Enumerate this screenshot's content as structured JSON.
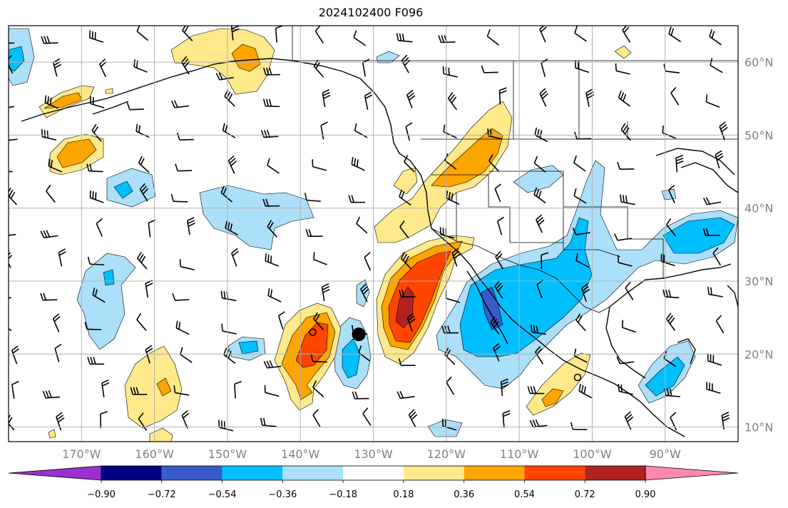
{
  "title": "2024102400 F096",
  "map": {
    "lon_range": [
      -180,
      -80
    ],
    "lat_range": [
      8,
      65
    ],
    "lon_ticks": [
      {
        "value": -170,
        "label": "170°W"
      },
      {
        "value": -160,
        "label": "160°W"
      },
      {
        "value": -150,
        "label": "150°W"
      },
      {
        "value": -140,
        "label": "140°W"
      },
      {
        "value": -130,
        "label": "130°W"
      },
      {
        "value": -120,
        "label": "120°W"
      },
      {
        "value": -110,
        "label": "110°W"
      },
      {
        "value": -100,
        "label": "100°W"
      },
      {
        "value": -90,
        "label": "90°W"
      }
    ],
    "lat_ticks": [
      {
        "value": 60,
        "label": "60°N"
      },
      {
        "value": 50,
        "label": "50°N"
      },
      {
        "value": 40,
        "label": "40°N"
      },
      {
        "value": 30,
        "label": "30°N"
      },
      {
        "value": 20,
        "label": "20°N"
      },
      {
        "value": 10,
        "label": "10°N"
      }
    ],
    "grid": true,
    "markers": [
      {
        "type": "filled-circle",
        "lon": -132,
        "lat": 22.7
      },
      {
        "type": "open-circle",
        "lon": -138.3,
        "lat": 23.0
      },
      {
        "type": "open-circle",
        "lon": -102,
        "lat": 16.8
      }
    ]
  },
  "colorbar": {
    "colors": [
      "#9b30d0",
      "#000080",
      "#3a5bcc",
      "#00bfff",
      "#abdffa",
      "#ffffff",
      "#ffe98a",
      "#ffa500",
      "#ff4500",
      "#b22222",
      "#ff88b0"
    ],
    "tick_labels": [
      "−0.90",
      "−0.72",
      "−0.54",
      "−0.36",
      "−0.18",
      "0.18",
      "0.36",
      "0.54",
      "0.72",
      "0.90"
    ],
    "extend": "both"
  },
  "colors": {
    "land_line": "#000000",
    "grid": "#b0b0b0",
    "ocean": "#ffffff"
  }
}
